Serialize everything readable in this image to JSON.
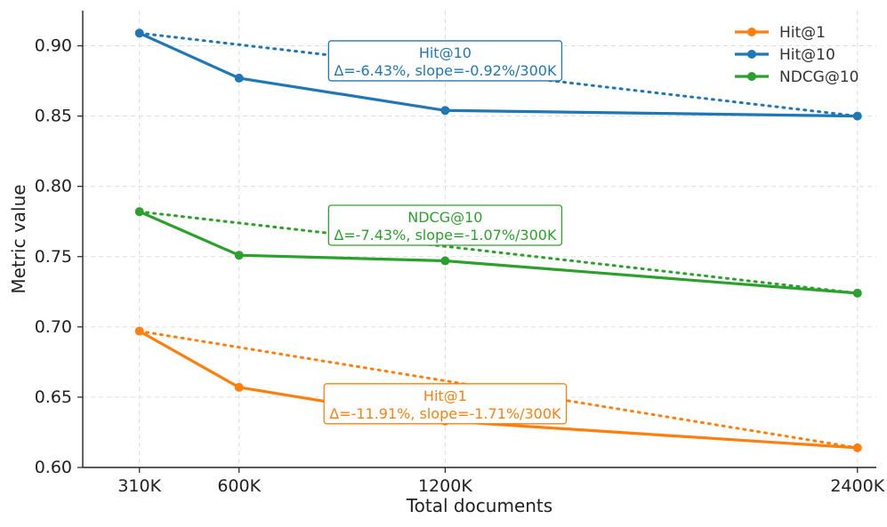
{
  "chart_data": {
    "type": "line",
    "title": "",
    "xlabel": "Total documents",
    "ylabel": "Metric value",
    "x": [
      310,
      600,
      1200,
      2400
    ],
    "x_tick_labels": [
      "310K",
      "600K",
      "1200K",
      "2400K"
    ],
    "ylim": [
      0.6,
      0.925
    ],
    "y_ticks": [
      0.6,
      0.65,
      0.7,
      0.75,
      0.8,
      0.85,
      0.9
    ],
    "y_tick_labels": [
      "0.60",
      "0.65",
      "0.70",
      "0.75",
      "0.80",
      "0.85",
      "0.90"
    ],
    "grid": true,
    "legend_position": "top-right",
    "series": [
      {
        "id": "hit1",
        "name": "Hit@1",
        "color": "#ff7f0e",
        "values": [
          0.697,
          0.657,
          0.633,
          0.614
        ],
        "annotation": {
          "title": "Hit@1",
          "detail": "Δ=-11.91%, slope=-1.71%/300K",
          "anchor_x": 1200,
          "anchor_y": 0.645
        }
      },
      {
        "id": "hit10",
        "name": "Hit@10",
        "color": "#1f77b4",
        "values": [
          0.909,
          0.877,
          0.854,
          0.85
        ],
        "annotation": {
          "title": "Hit@10",
          "detail": "Δ=-6.43%, slope=-0.92%/300K",
          "anchor_x": 1200,
          "anchor_y": 0.889
        }
      },
      {
        "id": "ndcg10",
        "name": "NDCG@10",
        "color": "#2ca02c",
        "values": [
          0.782,
          0.751,
          0.747,
          0.724
        ],
        "annotation": {
          "title": "NDCG@10",
          "detail": "Δ=-7.43%, slope=-1.07%/300K",
          "anchor_x": 1200,
          "anchor_y": 0.772
        }
      }
    ]
  }
}
